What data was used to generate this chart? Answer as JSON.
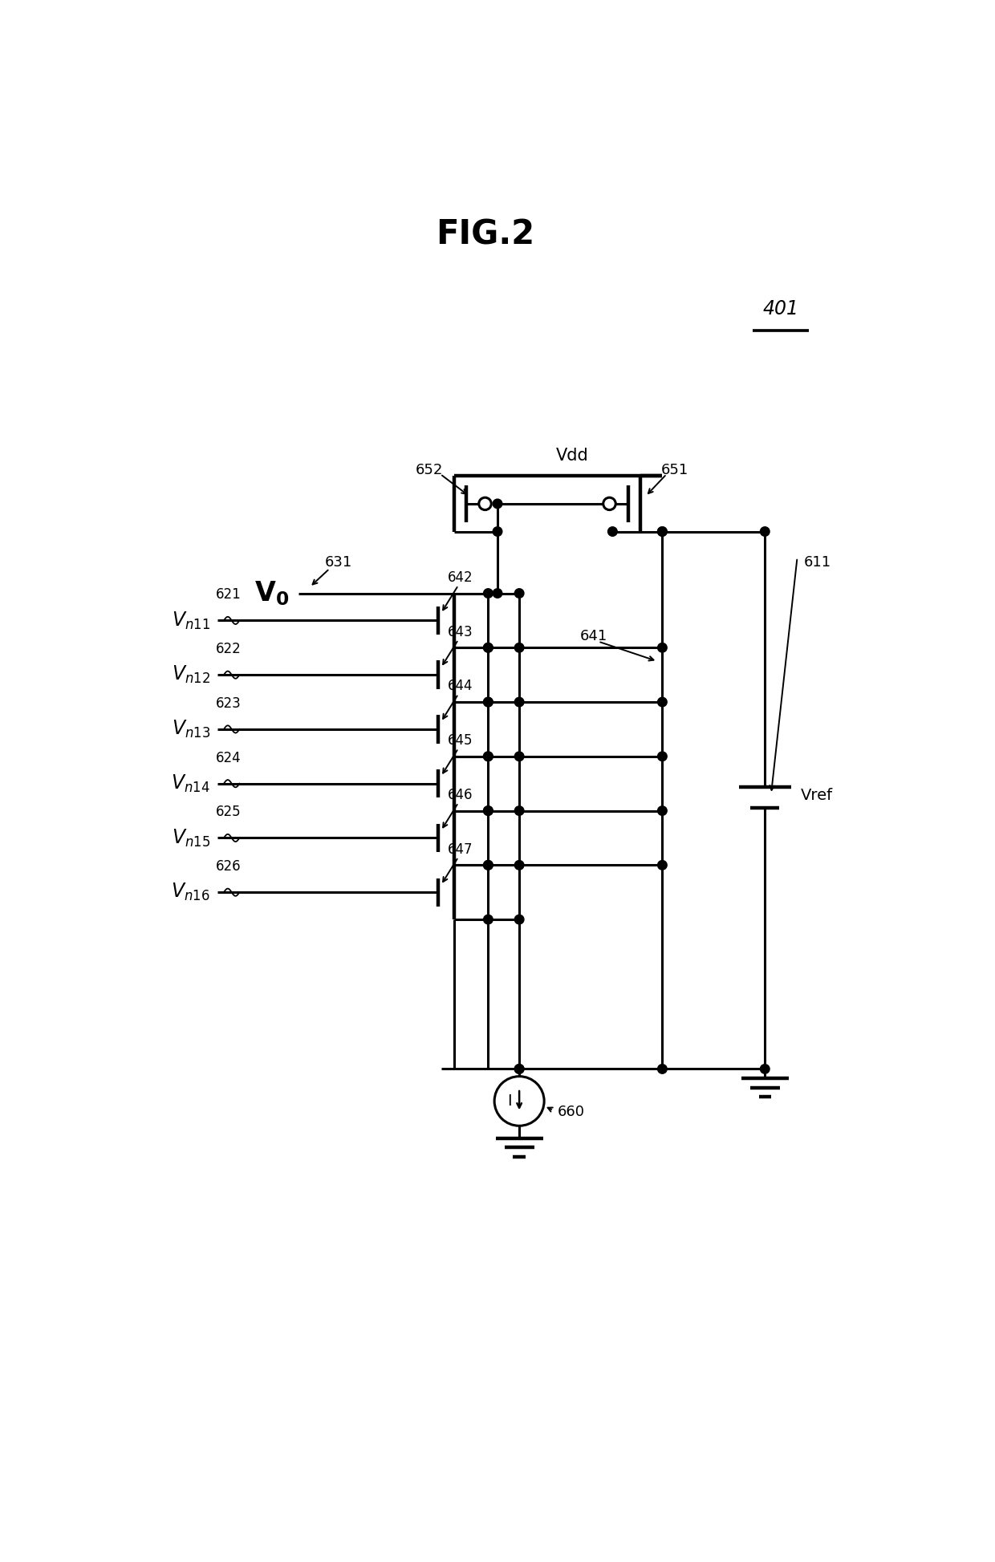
{
  "title": "FIG.2",
  "bg_color": "#ffffff",
  "line_color": "#000000",
  "lw": 2.2,
  "lwt": 3.2,
  "fig_width": 12.4,
  "fig_height": 19.47,
  "gate_subscripts": [
    "n11",
    "n12",
    "n13",
    "n14",
    "n15",
    "n16"
  ],
  "gate_input_nums": [
    "621",
    "622",
    "623",
    "624",
    "625",
    "626"
  ],
  "transistor_nums": [
    "642",
    "643",
    "644",
    "645",
    "646",
    "647"
  ],
  "label_401": "401",
  "label_vdd": "Vdd",
  "label_631": "631",
  "label_vref": "Vref",
  "label_651": "651",
  "label_652": "652",
  "label_641": "641",
  "label_611": "611",
  "label_660": "660",
  "label_I": "I"
}
